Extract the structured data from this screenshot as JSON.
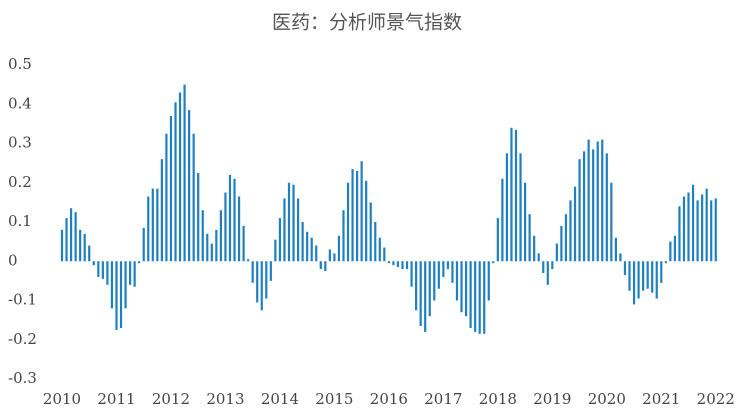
{
  "chart_data": {
    "type": "bar",
    "title": "医药：分析师景气指数",
    "color": "#1f7fc0",
    "categories": [
      "2010",
      null,
      null,
      null,
      null,
      null,
      null,
      null,
      null,
      null,
      null,
      null,
      "2011",
      null,
      null,
      null,
      null,
      null,
      null,
      null,
      null,
      null,
      null,
      null,
      "2012",
      null,
      null,
      null,
      null,
      null,
      null,
      null,
      null,
      null,
      null,
      null,
      "2013",
      null,
      null,
      null,
      null,
      null,
      null,
      null,
      null,
      null,
      null,
      null,
      "2014",
      null,
      null,
      null,
      null,
      null,
      null,
      null,
      null,
      null,
      null,
      null,
      "2015",
      null,
      null,
      null,
      null,
      null,
      null,
      null,
      null,
      null,
      null,
      null,
      "2016",
      null,
      null,
      null,
      null,
      null,
      null,
      null,
      null,
      null,
      null,
      null,
      "2017",
      null,
      null,
      null,
      null,
      null,
      null,
      null,
      null,
      null,
      null,
      null,
      "2018",
      null,
      null,
      null,
      null,
      null,
      null,
      null,
      null,
      null,
      null,
      null,
      "2019",
      null,
      null,
      null,
      null,
      null,
      null,
      null,
      null,
      null,
      null,
      null,
      "2020",
      null,
      null,
      null,
      null,
      null,
      null,
      null,
      null,
      null,
      null,
      null,
      "2021",
      null,
      null,
      null,
      null,
      null,
      null,
      null,
      null,
      null,
      null,
      null,
      "2022"
    ],
    "values": [
      0.08,
      0.11,
      0.135,
      0.125,
      0.08,
      0.07,
      0.04,
      -0.01,
      -0.04,
      -0.045,
      -0.06,
      -0.12,
      -0.175,
      -0.17,
      -0.12,
      -0.06,
      -0.065,
      -0.005,
      0.085,
      0.165,
      0.185,
      0.185,
      0.26,
      0.325,
      0.37,
      0.405,
      0.43,
      0.45,
      0.385,
      0.325,
      0.225,
      0.13,
      0.07,
      0.045,
      0.08,
      0.13,
      0.175,
      0.22,
      0.21,
      0.165,
      0.09,
      0.005,
      -0.055,
      -0.105,
      -0.125,
      -0.095,
      -0.05,
      0.055,
      0.11,
      0.16,
      0.2,
      0.195,
      0.16,
      0.1,
      0.075,
      0.06,
      0.04,
      -0.02,
      -0.025,
      0.03,
      0.02,
      0.065,
      0.13,
      0.2,
      0.235,
      0.23,
      0.255,
      0.205,
      0.15,
      0.1,
      0.06,
      0.035,
      -0.005,
      -0.01,
      -0.015,
      -0.02,
      -0.02,
      -0.065,
      -0.125,
      -0.165,
      -0.18,
      -0.14,
      -0.1,
      -0.07,
      -0.04,
      -0.02,
      -0.055,
      -0.1,
      -0.13,
      -0.14,
      -0.17,
      -0.18,
      -0.185,
      -0.185,
      -0.1,
      -0.005,
      0.11,
      0.21,
      0.275,
      0.34,
      0.335,
      0.275,
      0.2,
      0.12,
      0.065,
      0.02,
      -0.03,
      -0.06,
      -0.02,
      0.045,
      0.09,
      0.12,
      0.155,
      0.19,
      0.26,
      0.28,
      0.31,
      0.285,
      0.305,
      0.31,
      0.275,
      0.2,
      0.06,
      0.02,
      -0.035,
      -0.075,
      -0.11,
      -0.095,
      -0.075,
      -0.07,
      -0.08,
      -0.095,
      -0.055,
      -0.005,
      0.05,
      0.065,
      0.14,
      0.165,
      0.175,
      0.195,
      0.155,
      0.17,
      0.185,
      0.155,
      0.16
    ],
    "ylim": [
      -0.3,
      0.5
    ],
    "yticks": [
      -0.3,
      -0.2,
      -0.1,
      0,
      0.1,
      0.2,
      0.3,
      0.4,
      0.5
    ],
    "grid": false
  }
}
